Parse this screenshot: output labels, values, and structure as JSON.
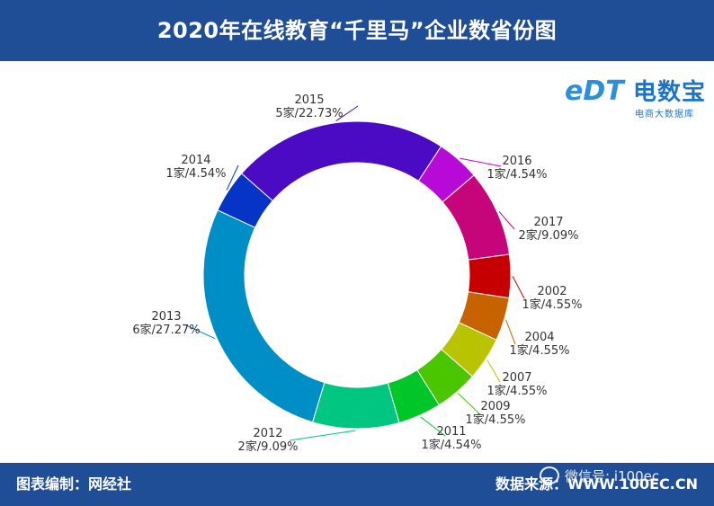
{
  "header": {
    "title": "2020年在线教育“千里马”企业数省份图"
  },
  "footer": {
    "left": "图表编制：网经社",
    "right": "数据来源：WWW.100EC.CN",
    "watermark": "微信号: i100ec"
  },
  "logo": {
    "main": "电数宝",
    "sub": "电商大数据库",
    "mark": "eDT"
  },
  "chart_data": {
    "type": "pie",
    "donut": true,
    "title": "2020年在线教育“千里马”企业数省份图",
    "categories": [
      "2015",
      "2016",
      "2017",
      "2002",
      "2004",
      "2007",
      "2009",
      "2011",
      "2012",
      "2013",
      "2014"
    ],
    "values": [
      5,
      1,
      2,
      1,
      1,
      1,
      1,
      1,
      2,
      6,
      1
    ],
    "labels": [
      "5家/22.73%",
      "1家/4.54%",
      "2家/9.09%",
      "1家/4.55%",
      "1家/4.55%",
      "1家/4.55%",
      "1家/4.55%",
      "1家/4.54%",
      "2家/9.09%",
      "6家/27.27%",
      "1家/4.54%"
    ],
    "colors": [
      "#4b0ac4",
      "#b70ad6",
      "#c6057a",
      "#c60000",
      "#c66200",
      "#b8c400",
      "#4ac600",
      "#00c62a",
      "#00c682",
      "#008ec6",
      "#0534c6"
    ]
  }
}
